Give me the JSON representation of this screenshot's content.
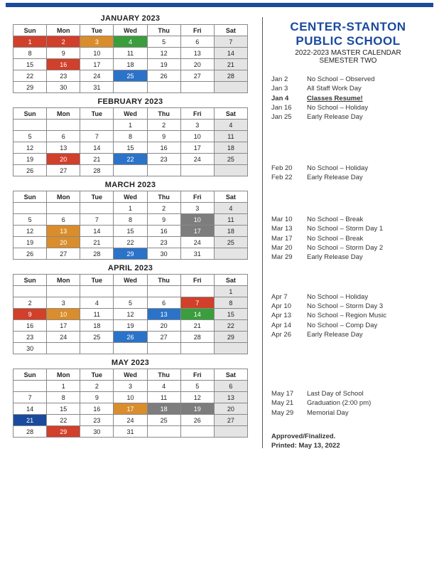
{
  "colors": {
    "red": "#d0402b",
    "orange": "#d98d2c",
    "green": "#3a9e3c",
    "blue": "#2b73c9",
    "grey": "#7d7d7d",
    "darkblue": "#1a4a9e",
    "sat": "#e4e4e4",
    "white": "#ffffff"
  },
  "title": {
    "line1": "CENTER-STANTON",
    "line2": "PUBLIC SCHOOL",
    "sub": "2022-2023 MASTER CALENDAR",
    "sem": "SEMESTER TWO"
  },
  "day_headers": [
    "Sun",
    "Mon",
    "Tue",
    "Wed",
    "Thu",
    "Fri",
    "Sat"
  ],
  "months": [
    {
      "name": "JANUARY 2023",
      "weeks": [
        [
          {
            "n": 1,
            "c": "red"
          },
          {
            "n": 2,
            "c": "red"
          },
          {
            "n": 3,
            "c": "orange"
          },
          {
            "n": 4,
            "c": "green"
          },
          {
            "n": 5
          },
          {
            "n": 6
          },
          {
            "n": 7,
            "sat": true
          }
        ],
        [
          {
            "n": 8
          },
          {
            "n": 9
          },
          {
            "n": 10
          },
          {
            "n": 11
          },
          {
            "n": 12
          },
          {
            "n": 13
          },
          {
            "n": 14,
            "sat": true
          }
        ],
        [
          {
            "n": 15
          },
          {
            "n": 16,
            "c": "red"
          },
          {
            "n": 17
          },
          {
            "n": 18
          },
          {
            "n": 19
          },
          {
            "n": 20
          },
          {
            "n": 21,
            "sat": true
          }
        ],
        [
          {
            "n": 22
          },
          {
            "n": 23
          },
          {
            "n": 24
          },
          {
            "n": 25,
            "c": "blue"
          },
          {
            "n": 26
          },
          {
            "n": 27
          },
          {
            "n": 28,
            "sat": true
          }
        ],
        [
          {
            "n": 29
          },
          {
            "n": 30
          },
          {
            "n": 31
          },
          {},
          {},
          {},
          {
            "sat": true
          }
        ]
      ]
    },
    {
      "name": "FEBRUARY 2023",
      "weeks": [
        [
          {},
          {},
          {},
          {
            "n": 1
          },
          {
            "n": 2
          },
          {
            "n": 3
          },
          {
            "n": 4,
            "sat": true
          }
        ],
        [
          {
            "n": 5
          },
          {
            "n": 6
          },
          {
            "n": 7
          },
          {
            "n": 8
          },
          {
            "n": 9
          },
          {
            "n": 10
          },
          {
            "n": 11,
            "sat": true
          }
        ],
        [
          {
            "n": 12
          },
          {
            "n": 13
          },
          {
            "n": 14
          },
          {
            "n": 15
          },
          {
            "n": 16
          },
          {
            "n": 17
          },
          {
            "n": 18,
            "sat": true
          }
        ],
        [
          {
            "n": 19
          },
          {
            "n": 20,
            "c": "red"
          },
          {
            "n": 21
          },
          {
            "n": 22,
            "c": "blue"
          },
          {
            "n": 23
          },
          {
            "n": 24
          },
          {
            "n": 25,
            "sat": true
          }
        ],
        [
          {
            "n": 26
          },
          {
            "n": 27
          },
          {
            "n": 28
          },
          {},
          {},
          {},
          {
            "sat": true
          }
        ]
      ]
    },
    {
      "name": "MARCH 2023",
      "weeks": [
        [
          {},
          {},
          {},
          {
            "n": 1
          },
          {
            "n": 2
          },
          {
            "n": 3
          },
          {
            "n": 4,
            "sat": true
          }
        ],
        [
          {
            "n": 5
          },
          {
            "n": 6
          },
          {
            "n": 7
          },
          {
            "n": 8
          },
          {
            "n": 9
          },
          {
            "n": 10,
            "c": "grey"
          },
          {
            "n": 11,
            "sat": true
          }
        ],
        [
          {
            "n": 12
          },
          {
            "n": 13,
            "c": "orange"
          },
          {
            "n": 14
          },
          {
            "n": 15
          },
          {
            "n": 16
          },
          {
            "n": 17,
            "c": "grey"
          },
          {
            "n": 18,
            "sat": true
          }
        ],
        [
          {
            "n": 19
          },
          {
            "n": 20,
            "c": "orange"
          },
          {
            "n": 21
          },
          {
            "n": 22
          },
          {
            "n": 23
          },
          {
            "n": 24
          },
          {
            "n": 25,
            "sat": true
          }
        ],
        [
          {
            "n": 26
          },
          {
            "n": 27
          },
          {
            "n": 28
          },
          {
            "n": 29,
            "c": "blue"
          },
          {
            "n": 30
          },
          {
            "n": 31
          },
          {
            "sat": true
          }
        ]
      ]
    },
    {
      "name": "APRIL 2023",
      "weeks": [
        [
          {},
          {},
          {},
          {},
          {},
          {},
          {
            "n": 1,
            "sat": true
          }
        ],
        [
          {
            "n": 2
          },
          {
            "n": 3
          },
          {
            "n": 4
          },
          {
            "n": 5
          },
          {
            "n": 6
          },
          {
            "n": 7,
            "c": "red"
          },
          {
            "n": 8,
            "sat": true
          }
        ],
        [
          {
            "n": 9,
            "c": "red"
          },
          {
            "n": 10,
            "c": "orange"
          },
          {
            "n": 11
          },
          {
            "n": 12
          },
          {
            "n": 13,
            "c": "blue"
          },
          {
            "n": 14,
            "c": "green"
          },
          {
            "n": 15,
            "sat": true
          }
        ],
        [
          {
            "n": 16
          },
          {
            "n": 17
          },
          {
            "n": 18
          },
          {
            "n": 19
          },
          {
            "n": 20
          },
          {
            "n": 21
          },
          {
            "n": 22,
            "sat": true
          }
        ],
        [
          {
            "n": 23
          },
          {
            "n": 24
          },
          {
            "n": 25
          },
          {
            "n": 26,
            "c": "blue"
          },
          {
            "n": 27
          },
          {
            "n": 28
          },
          {
            "n": 29,
            "sat": true
          }
        ],
        [
          {
            "n": 30
          },
          {},
          {},
          {},
          {},
          {},
          {
            "sat": true
          }
        ]
      ]
    },
    {
      "name": "MAY 2023",
      "weeks": [
        [
          {},
          {
            "n": 1
          },
          {
            "n": 2
          },
          {
            "n": 3
          },
          {
            "n": 4
          },
          {
            "n": 5
          },
          {
            "n": 6,
            "sat": true
          }
        ],
        [
          {
            "n": 7
          },
          {
            "n": 8
          },
          {
            "n": 9
          },
          {
            "n": 10
          },
          {
            "n": 11
          },
          {
            "n": 12
          },
          {
            "n": 13,
            "sat": true
          }
        ],
        [
          {
            "n": 14
          },
          {
            "n": 15
          },
          {
            "n": 16
          },
          {
            "n": 17,
            "c": "orange"
          },
          {
            "n": 18,
            "c": "grey"
          },
          {
            "n": 19,
            "c": "grey"
          },
          {
            "n": 20,
            "sat": true
          }
        ],
        [
          {
            "n": 21,
            "c": "darkblue"
          },
          {
            "n": 22
          },
          {
            "n": 23
          },
          {
            "n": 24
          },
          {
            "n": 25
          },
          {
            "n": 26
          },
          {
            "n": 27,
            "sat": true
          }
        ],
        [
          {
            "n": 28
          },
          {
            "n": 29,
            "c": "red"
          },
          {
            "n": 30
          },
          {
            "n": 31
          },
          {},
          {},
          {
            "sat": true
          }
        ]
      ]
    }
  ],
  "event_groups": [
    [
      {
        "date": "Jan 2",
        "desc": "No School – Observed"
      },
      {
        "date": "Jan 3",
        "desc": "All Staff Work Day"
      },
      {
        "date": "Jan 4",
        "desc": "Classes Resume!",
        "bold": true,
        "underline": true
      },
      {
        "date": "Jan 16",
        "desc": "No School – Holiday"
      },
      {
        "date": "Jan 25",
        "desc": "Early Release Day"
      }
    ],
    [
      {
        "date": "Feb 20",
        "desc": "No School – Holiday"
      },
      {
        "date": "Feb 22",
        "desc": "Early Release Day"
      }
    ],
    [
      {
        "date": "Mar 10",
        "desc": "No School – Break"
      },
      {
        "date": "Mar 13",
        "desc": "No School – Storm Day 1"
      },
      {
        "date": "Mar 17",
        "desc": "No School – Break"
      },
      {
        "date": "Mar 20",
        "desc": "No School – Storm Day 2"
      },
      {
        "date": "Mar 29",
        "desc": "Early Release Day"
      }
    ],
    [
      {
        "date": "Apr 7",
        "desc": "No School – Holiday"
      },
      {
        "date": "Apr 10",
        "desc": "No School – Storm Day 3"
      },
      {
        "date": "Apr 13",
        "desc": "No School – Region Music"
      },
      {
        "date": "Apr 14",
        "desc": "No School – Comp Day"
      },
      {
        "date": "Apr 26",
        "desc": "Early Release Day"
      }
    ],
    [
      {
        "date": "May 17",
        "desc": "Last Day of School"
      },
      {
        "date": "May 21",
        "desc": "Graduation (2:00 pm)"
      },
      {
        "date": "May 29",
        "desc": "Memorial Day"
      }
    ]
  ],
  "event_group_margins": [
    14,
    58,
    46,
    42,
    70
  ],
  "footer": {
    "line1": "Approved/Finalized.",
    "line2": "Printed:  May 13, 2022"
  }
}
